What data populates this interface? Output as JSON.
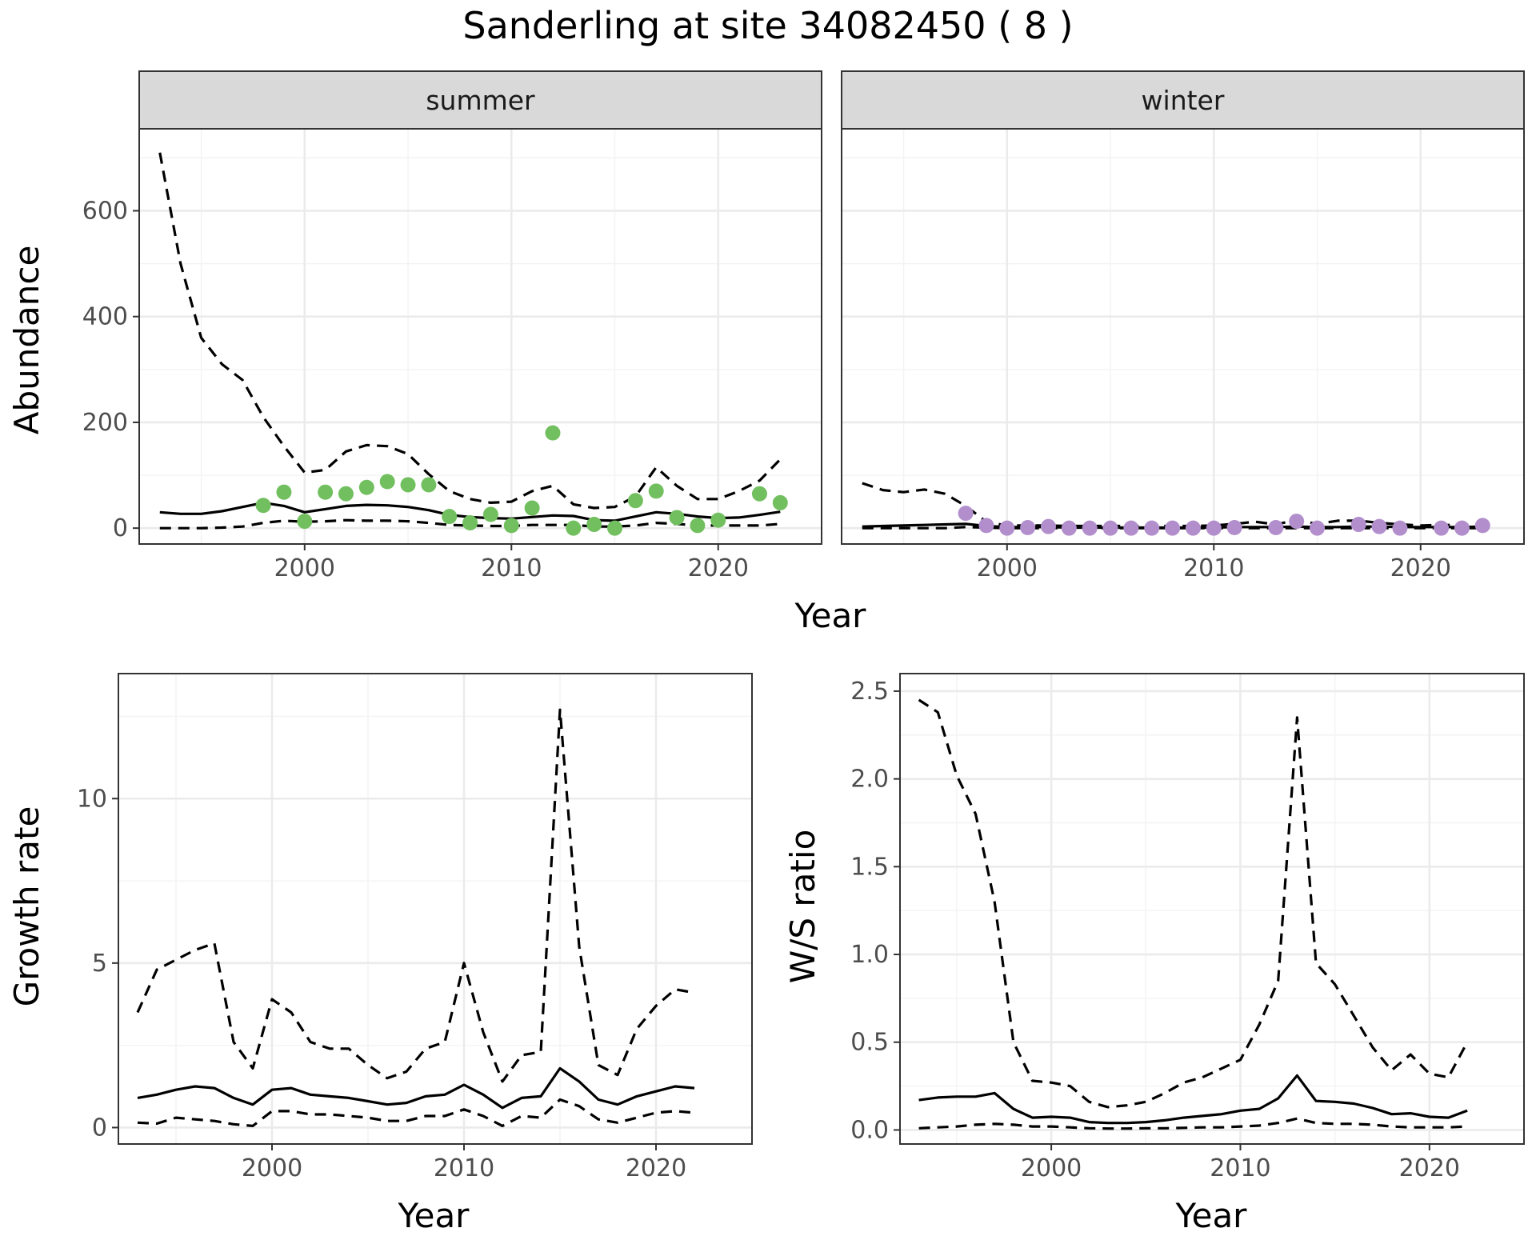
{
  "figure": {
    "title": "Sanderling at site 34082450 ( 8 )"
  },
  "chart_data": [
    {
      "type": "scatter",
      "panel": "summer",
      "strip_label": "summer",
      "xlabel": "Year",
      "ylabel": "Abundance",
      "xlim": [
        1992,
        2025
      ],
      "ylim": [
        -30,
        755
      ],
      "xticks": [
        2000,
        2010,
        2020
      ],
      "yticks": [
        0,
        200,
        400,
        600
      ],
      "point_color": "#72bf5f",
      "x": [
        1993,
        1994,
        1995,
        1996,
        1997,
        1998,
        1999,
        2000,
        2001,
        2002,
        2003,
        2004,
        2005,
        2006,
        2007,
        2008,
        2009,
        2010,
        2011,
        2012,
        2013,
        2014,
        2015,
        2016,
        2017,
        2018,
        2019,
        2020,
        2021,
        2022,
        2023
      ],
      "observed": [
        null,
        null,
        null,
        null,
        null,
        43,
        68,
        13,
        68,
        65,
        77,
        88,
        82,
        82,
        22,
        10,
        26,
        5,
        38,
        180,
        0,
        7,
        0,
        52,
        70,
        20,
        5,
        15,
        null,
        65,
        48
      ],
      "estimate": [
        30,
        27,
        27,
        32,
        40,
        48,
        42,
        30,
        36,
        42,
        44,
        43,
        40,
        34,
        25,
        21,
        19,
        18,
        21,
        24,
        23,
        15,
        14,
        22,
        30,
        27,
        22,
        19,
        20,
        25,
        31
      ],
      "lower": [
        0,
        0,
        0,
        1,
        3,
        10,
        14,
        12,
        13,
        15,
        14,
        14,
        13,
        10,
        6,
        5,
        4,
        4,
        6,
        6,
        6,
        3,
        3,
        5,
        10,
        8,
        5,
        5,
        5,
        5,
        8
      ],
      "upper": [
        710,
        500,
        360,
        310,
        280,
        210,
        155,
        105,
        110,
        145,
        157,
        155,
        140,
        102,
        70,
        55,
        48,
        50,
        70,
        80,
        45,
        38,
        40,
        60,
        115,
        80,
        55,
        55,
        70,
        90,
        130
      ]
    },
    {
      "type": "scatter",
      "panel": "winter",
      "strip_label": "winter",
      "xlabel": "Year",
      "ylabel": "Abundance",
      "xlim": [
        1992,
        2025
      ],
      "ylim": [
        -30,
        755
      ],
      "xticks": [
        2000,
        2010,
        2020
      ],
      "yticks": [
        0,
        200,
        400,
        600
      ],
      "point_color": "#b28fcc",
      "x": [
        1993,
        1994,
        1995,
        1996,
        1997,
        1998,
        1999,
        2000,
        2001,
        2002,
        2003,
        2004,
        2005,
        2006,
        2007,
        2008,
        2009,
        2010,
        2011,
        2012,
        2013,
        2014,
        2015,
        2016,
        2017,
        2018,
        2019,
        2020,
        2021,
        2022,
        2023
      ],
      "observed": [
        null,
        null,
        null,
        null,
        null,
        28,
        5,
        0,
        1,
        3,
        0,
        0,
        0,
        0,
        0,
        0,
        0,
        0,
        1,
        null,
        1,
        13,
        0,
        null,
        7,
        3,
        0,
        null,
        0,
        0,
        5
      ],
      "estimate": [
        3,
        4,
        5,
        6,
        7,
        8,
        4,
        2,
        2,
        2,
        1,
        1,
        1,
        1,
        1,
        1,
        1,
        1,
        2,
        2,
        2,
        3,
        2,
        2,
        3,
        3,
        2,
        2,
        2,
        2,
        3
      ],
      "lower": [
        0,
        0,
        0,
        0,
        0,
        2,
        1,
        0,
        0,
        0,
        0,
        0,
        0,
        0,
        0,
        0,
        0,
        0,
        0,
        0,
        0,
        0,
        0,
        0,
        0,
        0,
        0,
        0,
        0,
        0,
        0
      ],
      "upper": [
        85,
        72,
        68,
        73,
        65,
        42,
        12,
        5,
        5,
        5,
        4,
        4,
        4,
        4,
        4,
        4,
        4,
        5,
        8,
        12,
        7,
        15,
        8,
        14,
        14,
        10,
        7,
        5,
        6,
        6,
        7
      ]
    },
    {
      "type": "line",
      "panel": "growth",
      "xlabel": "Year",
      "ylabel": "Growth rate",
      "xlim": [
        1992,
        2025
      ],
      "ylim": [
        -0.5,
        13.8
      ],
      "xticks": [
        2000,
        2010,
        2020
      ],
      "yticks": [
        0,
        5,
        10
      ],
      "x": [
        1993,
        1994,
        1995,
        1996,
        1997,
        1998,
        1999,
        2000,
        2001,
        2002,
        2003,
        2004,
        2005,
        2006,
        2007,
        2008,
        2009,
        2010,
        2011,
        2012,
        2013,
        2014,
        2015,
        2016,
        2017,
        2018,
        2019,
        2020,
        2021,
        2022
      ],
      "estimate": [
        0.9,
        1.0,
        1.15,
        1.25,
        1.2,
        0.9,
        0.7,
        1.15,
        1.2,
        1.0,
        0.95,
        0.9,
        0.8,
        0.7,
        0.75,
        0.95,
        1.0,
        1.3,
        1.0,
        0.6,
        0.9,
        0.95,
        1.8,
        1.4,
        0.85,
        0.7,
        0.95,
        1.1,
        1.25,
        1.2
      ],
      "lower": [
        0.15,
        0.12,
        0.3,
        0.25,
        0.2,
        0.1,
        0.05,
        0.5,
        0.5,
        0.4,
        0.4,
        0.35,
        0.3,
        0.2,
        0.2,
        0.35,
        0.35,
        0.55,
        0.35,
        0.05,
        0.35,
        0.3,
        0.85,
        0.65,
        0.25,
        0.15,
        0.3,
        0.45,
        0.5,
        0.45
      ],
      "upper": [
        3.5,
        4.8,
        5.1,
        5.4,
        5.6,
        2.6,
        1.8,
        3.9,
        3.5,
        2.6,
        2.4,
        2.4,
        1.9,
        1.5,
        1.7,
        2.4,
        2.6,
        5.0,
        2.9,
        1.4,
        2.2,
        2.3,
        12.7,
        5.5,
        1.9,
        1.6,
        3.0,
        3.7,
        4.2,
        4.1
      ]
    },
    {
      "type": "line",
      "panel": "ratio",
      "xlabel": "Year",
      "ylabel": "W/S ratio",
      "xlim": [
        1992,
        2025
      ],
      "ylim": [
        -0.08,
        2.6
      ],
      "xticks": [
        2000,
        2010,
        2020
      ],
      "yticks": [
        0.0,
        0.5,
        1.0,
        1.5,
        2.0,
        2.5
      ],
      "ytick_labels": [
        "0.0",
        "0.5",
        "1.0",
        "1.5",
        "2.0",
        "2.5"
      ],
      "x": [
        1993,
        1994,
        1995,
        1996,
        1997,
        1998,
        1999,
        2000,
        2001,
        2002,
        2003,
        2004,
        2005,
        2006,
        2007,
        2008,
        2009,
        2010,
        2011,
        2012,
        2013,
        2014,
        2015,
        2016,
        2017,
        2018,
        2019,
        2020,
        2021,
        2022
      ],
      "estimate": [
        0.17,
        0.185,
        0.19,
        0.19,
        0.21,
        0.12,
        0.07,
        0.075,
        0.07,
        0.045,
        0.04,
        0.04,
        0.045,
        0.055,
        0.07,
        0.08,
        0.09,
        0.11,
        0.12,
        0.18,
        0.31,
        0.165,
        0.16,
        0.15,
        0.125,
        0.09,
        0.095,
        0.075,
        0.07,
        0.11
      ],
      "lower": [
        0.01,
        0.015,
        0.02,
        0.03,
        0.035,
        0.03,
        0.02,
        0.02,
        0.015,
        0.01,
        0.008,
        0.008,
        0.01,
        0.01,
        0.012,
        0.015,
        0.015,
        0.02,
        0.025,
        0.04,
        0.065,
        0.04,
        0.035,
        0.035,
        0.03,
        0.02,
        0.015,
        0.015,
        0.015,
        0.02
      ],
      "upper": [
        2.45,
        2.38,
        2.02,
        1.8,
        1.3,
        0.5,
        0.28,
        0.27,
        0.25,
        0.16,
        0.13,
        0.14,
        0.16,
        0.21,
        0.27,
        0.3,
        0.35,
        0.4,
        0.6,
        0.85,
        2.35,
        0.95,
        0.83,
        0.65,
        0.47,
        0.34,
        0.43,
        0.32,
        0.3,
        0.5
      ]
    }
  ]
}
